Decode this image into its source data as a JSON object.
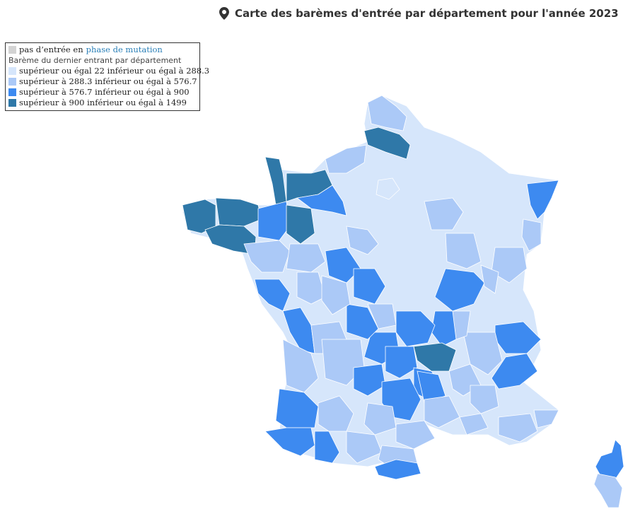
{
  "title": "Carte des barèmes d'entrée par département pour l'année 2023",
  "legend": {
    "no_entry_prefix": "pas d’entrée en",
    "no_entry_link": "phase de mutation",
    "heading": "Barème du dernier entrant par département",
    "classes": [
      {
        "label": "supérieur ou égal 22 inférieur ou égal à 288.3",
        "color": "#d6e6fb"
      },
      {
        "label": "supérieur à 288.3 inférieur ou égal à 576.7",
        "color": "#abc9f7"
      },
      {
        "label": "supérieur à 576.7 inférieur ou égal à 900",
        "color": "#3d8af0"
      },
      {
        "label": "supérieur à 900 inférieur ou égal à 1499",
        "color": "#2f78a8"
      }
    ],
    "no_entry_color": "#d3d3d3"
  },
  "icons": {
    "title": "map-marker-icon"
  }
}
